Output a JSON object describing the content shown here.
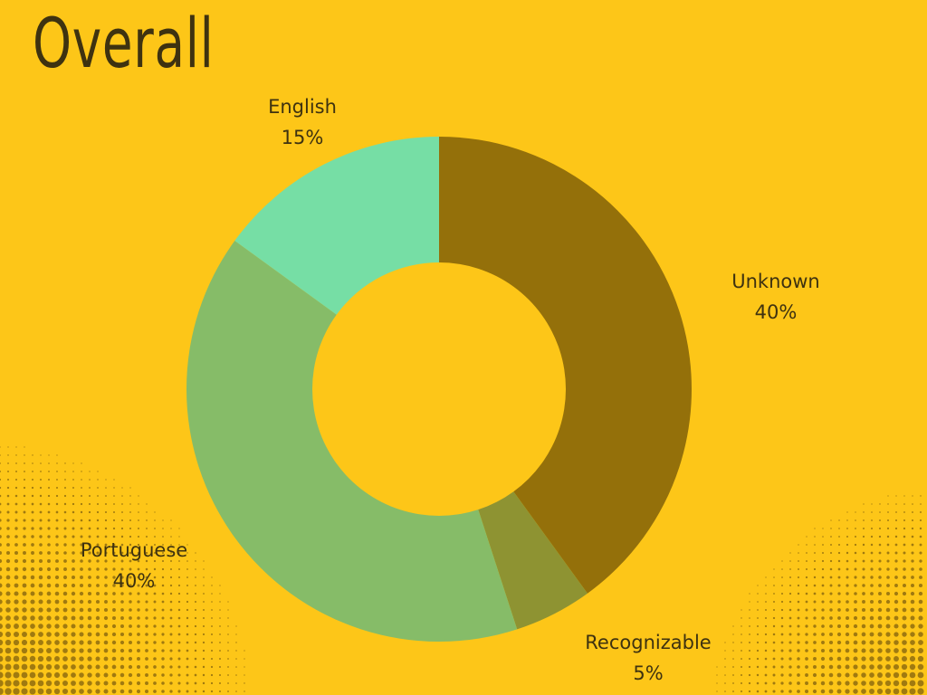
{
  "chart_data": {
    "type": "pie",
    "title": "Overall",
    "donut": true,
    "slices": [
      {
        "label": "Unknown",
        "percent_label": "40%",
        "value": 40
      },
      {
        "label": "Recognizable",
        "percent_label": "5%",
        "value": 5
      },
      {
        "label": "Portuguese",
        "percent_label": "40%",
        "value": 40
      },
      {
        "label": "English",
        "percent_label": "15%",
        "value": 15
      }
    ]
  },
  "colors": {
    "background": "#FDC618",
    "text": "#3E3210",
    "slices": [
      "#94700A",
      "#8E9332",
      "#86BC68",
      "#76DEA5"
    ],
    "dots": "#A07A10"
  }
}
